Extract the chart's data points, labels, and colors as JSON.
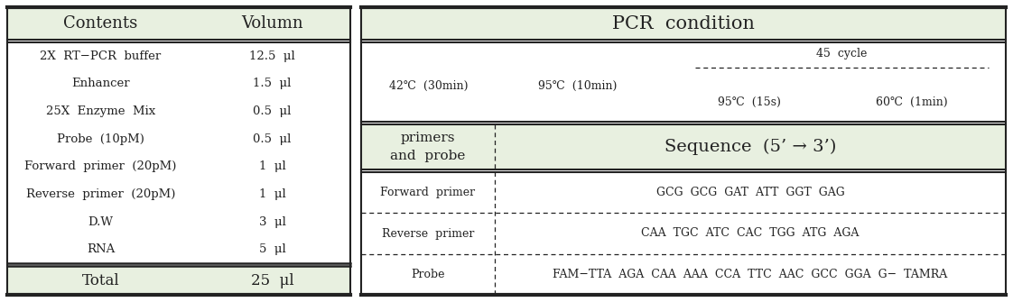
{
  "header_bg": "#e8f0e0",
  "white_bg": "#ffffff",
  "border_color": "#222222",
  "left_table": {
    "headers": [
      "Contents",
      "Volumn"
    ],
    "rows": [
      [
        "2X  RT−PCR  buffer",
        "12.5  μl"
      ],
      [
        "Enhancer",
        "1.5  μl"
      ],
      [
        "25X  Enzyme  Mix",
        "0.5  μl"
      ],
      [
        "Probe  (10pM)",
        "0.5  μl"
      ],
      [
        "Forward  primer  (20pM)",
        "1  μl"
      ],
      [
        "Reverse  primer  (20pM)",
        "1  μl"
      ],
      [
        "D.W",
        "3  μl"
      ],
      [
        "RNA",
        "5  μl"
      ]
    ],
    "total_label": "Total",
    "total_value": "25  μl"
  },
  "right_table": {
    "pcr_title": "PCR  condition",
    "cycle_label": "45  cycle",
    "step1_label": "42℃  (30min)",
    "step2_label": "95℃  (10min)",
    "step3_label": "95℃  (15s)",
    "step4_label": "60℃  (1min)",
    "header_left": "primers\nand  probe",
    "header_right": "Sequence  (5’ → 3’)",
    "rows": [
      [
        "Forward  primer",
        "GCG  GCG  GAT  ATT  GGT  GAG"
      ],
      [
        "Reverse  primer",
        "CAA  TGC  ATC  CAC  TGG  ATG  AGA"
      ],
      [
        "Probe",
        "FAM−TTA  AGA  CAA  AAA  CCA  TTC  AAC  GCC  GGA  G−  TAMRA"
      ]
    ]
  }
}
